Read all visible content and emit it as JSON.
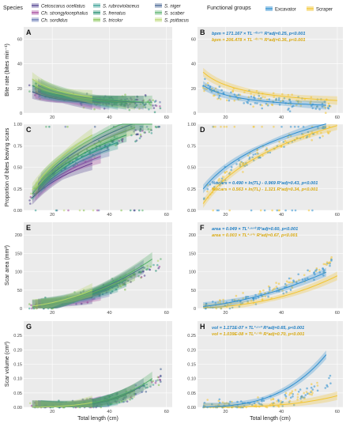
{
  "legend": {
    "species_title": "Species",
    "species": [
      {
        "label": "Cetoscarus ocellatus",
        "color": "#4b3b8c",
        "italic": true
      },
      {
        "label": "Ch. strongylocephalus",
        "color": "#a3439a",
        "italic": true
      },
      {
        "label": "Ch. sordidus",
        "color": "#5b6fae",
        "italic": true
      },
      {
        "label": "S. rubroviolaceus",
        "color": "#2f9a8e",
        "italic": true
      },
      {
        "label": "S. frenatus",
        "color": "#1b8a6b",
        "italic": true
      },
      {
        "label": "S. tricolor",
        "color": "#7fbf4a",
        "italic": true
      },
      {
        "label": "S. niger",
        "color": "#3f5f8f",
        "italic": true
      },
      {
        "label": "S. scaber",
        "color": "#55b06a",
        "italic": true
      },
      {
        "label": "S. psittacus",
        "color": "#b6d46a",
        "italic": true
      }
    ],
    "groups_title": "Functional groups",
    "groups": [
      {
        "label": "Excavator",
        "color": "#2e8fd0"
      },
      {
        "label": "Scraper",
        "color": "#f2c531"
      }
    ]
  },
  "chart_data": [
    {
      "panel": "A",
      "type": "scatter",
      "xlabel": "",
      "ylabel": "Bite rate (bites min⁻¹)",
      "xlim": [
        10,
        62
      ],
      "ylim": [
        0,
        70
      ],
      "xticks": [
        20,
        40,
        60
      ],
      "yticks": [
        0,
        20,
        40,
        60
      ],
      "fits": "species"
    },
    {
      "panel": "B",
      "type": "scatter",
      "xlabel": "",
      "ylabel": "",
      "xlim": [
        10,
        62
      ],
      "ylim": [
        0,
        70
      ],
      "xticks": [
        20,
        40,
        60
      ],
      "yticks": [
        0,
        20,
        40,
        60
      ],
      "fits": "group",
      "equations": [
        {
          "group": "Excavator",
          "text": "bpm = 171.167 × TL⁻⁰·⁸¹⁷  R²adj=0.25, p<0.001",
          "a": 171.167,
          "b": -0.817
        },
        {
          "group": "Scraper",
          "text": "bpm = 206.478 × TL⁻⁰·⁷³⁵  R²adj=0.36, p<0.001",
          "a": 206.478,
          "b": -0.735
        }
      ]
    },
    {
      "panel": "C",
      "type": "scatter",
      "xlabel": "",
      "ylabel": "Proportion of bites leaving scars",
      "xlim": [
        10,
        62
      ],
      "ylim": [
        0,
        1
      ],
      "xticks": [
        20,
        40,
        60
      ],
      "yticks": [
        0.0,
        0.25,
        0.5,
        0.75,
        1.0
      ],
      "fits": "species"
    },
    {
      "panel": "D",
      "type": "scatter",
      "xlabel": "",
      "ylabel": "",
      "xlim": [
        10,
        62
      ],
      "ylim": [
        0,
        1
      ],
      "xticks": [
        20,
        40,
        60
      ],
      "yticks": [
        0.0,
        0.25,
        0.5,
        0.75,
        1.0
      ],
      "fits": "group",
      "equations": [
        {
          "group": "Excavator",
          "text": "%scars = 0.490 × ln(TL) - 0.969  R²adj=0.43, p<0.001",
          "a": 0.49,
          "b": -0.969
        },
        {
          "group": "Scraper",
          "text": "%scars = 0.563 × ln(TL) - 1.321  R²adj=0.34, p<0.001",
          "a": 0.563,
          "b": -1.321
        }
      ]
    },
    {
      "panel": "E",
      "type": "scatter",
      "xlabel": "",
      "ylabel": "Scar area (mm²)",
      "xlim": [
        10,
        62
      ],
      "ylim": [
        0,
        235
      ],
      "xticks": [
        20,
        40,
        60
      ],
      "yticks": [
        0,
        50,
        100,
        150,
        200
      ],
      "fits": "species"
    },
    {
      "panel": "F",
      "type": "scatter",
      "xlabel": "",
      "ylabel": "",
      "xlim": [
        10,
        62
      ],
      "ylim": [
        0,
        235
      ],
      "xticks": [
        20,
        40,
        60
      ],
      "yticks": [
        0,
        50,
        100,
        150,
        200
      ],
      "fits": "group",
      "equations": [
        {
          "group": "Excavator",
          "text": "area = 0.049 × TL¹·⁸⁹⁰  R²adj=0.60, p<0.001",
          "a": 0.049,
          "b": 1.89
        },
        {
          "group": "Scraper",
          "text": "area = 0.003 × TL²·⁵¹⁵  R²adj=0.67, p<0.001",
          "a": 0.003,
          "b": 2.515
        }
      ]
    },
    {
      "panel": "G",
      "type": "scatter",
      "xlabel": "Total length (cm)",
      "ylabel": "Scar volume (cm³)",
      "xlim": [
        10,
        62
      ],
      "ylim": [
        0,
        0.3
      ],
      "xticks": [
        20,
        40,
        60
      ],
      "yticks": [
        0.0,
        0.05,
        0.1,
        0.15,
        0.2,
        0.25
      ],
      "fits": "species"
    },
    {
      "panel": "H",
      "type": "scatter",
      "xlabel": "Total length (cm)",
      "ylabel": "",
      "xlim": [
        10,
        62
      ],
      "ylim": [
        0,
        0.3
      ],
      "xticks": [
        20,
        40,
        60
      ],
      "yticks": [
        0.0,
        0.05,
        0.1,
        0.15,
        0.2,
        0.25
      ],
      "fits": "group",
      "equations": [
        {
          "group": "Excavator",
          "text": "vol = 1.171E-07 × TL³·⁵⁴³  R²adj=0.65, p<0.001",
          "a": 1.171e-07,
          "b": 3.543
        },
        {
          "group": "Scraper",
          "text": "vol = 1.039E-08 × TL³·⁷⁰⁵  R²adj=0.70, p<0.001",
          "a": 1.039e-08,
          "b": 3.705
        }
      ]
    }
  ]
}
